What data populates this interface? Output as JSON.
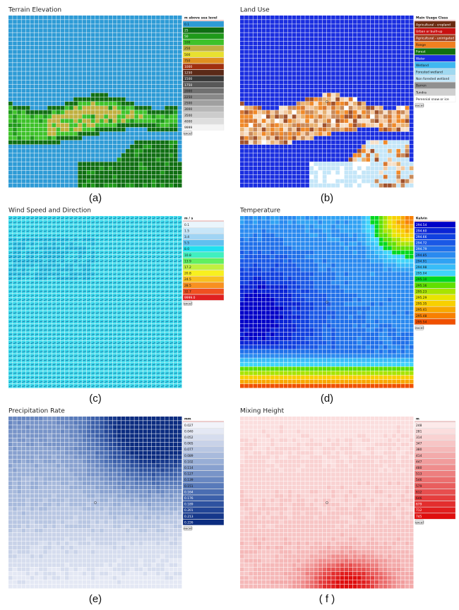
{
  "panels": [
    {
      "kind": "terrain",
      "title": "Terrain Elevation",
      "caption": "(a)",
      "button": "excel",
      "legend": {
        "title": "m above sea level",
        "items": [
          {
            "label": "0.1",
            "color": "#2e9bd6"
          },
          {
            "label": "25",
            "color": "#0f6e12"
          },
          {
            "label": "50",
            "color": "#1f9a1a"
          },
          {
            "label": "100",
            "color": "#3ec22a"
          },
          {
            "label": "250",
            "color": "#c0b040"
          },
          {
            "label": "500",
            "color": "#e8e030"
          },
          {
            "label": "750",
            "color": "#e09020"
          },
          {
            "label": "1000",
            "color": "#a03010"
          },
          {
            "label": "1250",
            "color": "#5a2a18"
          },
          {
            "label": "1500",
            "color": "#383838"
          },
          {
            "label": "1750",
            "color": "#585858"
          },
          {
            "label": "2000",
            "color": "#707070"
          },
          {
            "label": "2250",
            "color": "#888888"
          },
          {
            "label": "2500",
            "color": "#a0a0a0"
          },
          {
            "label": "3000",
            "color": "#b8b8b8"
          },
          {
            "label": "3500",
            "color": "#cccccc"
          },
          {
            "label": "4000",
            "color": "#dedede"
          },
          {
            "label": "9999",
            "color": "#f4f4f4"
          }
        ]
      }
    },
    {
      "kind": "landuse",
      "title": "Land Use",
      "caption": "(b)",
      "button": "excel",
      "legend": {
        "title": "Main Usage Class",
        "items": [
          {
            "label": "Agricultural - cropland",
            "color": "#6a2a10"
          },
          {
            "label": "Urban or built-up",
            "color": "#c81010"
          },
          {
            "label": "Agricultural - unirrigated",
            "color": "#a04020"
          },
          {
            "label": "Range",
            "color": "#f08020"
          },
          {
            "label": "Forest",
            "color": "#107010"
          },
          {
            "label": "Water",
            "color": "#1a2ee0"
          },
          {
            "label": "Wetland",
            "color": "#40b8f0"
          },
          {
            "label": "Forested wetland",
            "color": "#a0d8f0"
          },
          {
            "label": "Non forested wetland",
            "color": "#c4e6f8"
          },
          {
            "label": "Barren",
            "color": "#909090"
          },
          {
            "label": "Tundra",
            "color": "#d0d0d0"
          },
          {
            "label": "Perennial snow or ice",
            "color": "#ffffff"
          }
        ]
      }
    },
    {
      "kind": "wind",
      "title": "Wind Speed and Direction",
      "caption": "(c)",
      "button": "excel",
      "legend": {
        "title": "m / s",
        "items": [
          {
            "label": "0.1",
            "color": "#eaf5fc"
          },
          {
            "label": "1.5",
            "color": "#c8e6f8"
          },
          {
            "label": "3.4",
            "color": "#a0d4f4"
          },
          {
            "label": "5.5",
            "color": "#60c0f0"
          },
          {
            "label": "8.0",
            "color": "#20e0f0"
          },
          {
            "label": "10.8",
            "color": "#40f0c0"
          },
          {
            "label": "13.9",
            "color": "#60f060"
          },
          {
            "label": "17.2",
            "color": "#c0f040"
          },
          {
            "label": "20.8",
            "color": "#f8f020"
          },
          {
            "label": "24.5",
            "color": "#f8c020"
          },
          {
            "label": "28.5",
            "color": "#f89020"
          },
          {
            "label": "32.7",
            "color": "#f05020"
          },
          {
            "label": "9999.0",
            "color": "#e02020"
          }
        ]
      }
    },
    {
      "kind": "temperature",
      "title": "Temperature",
      "caption": "(d)",
      "button": "excel",
      "legend": {
        "title": "Kelvin",
        "items": [
          {
            "label": "294.54",
            "color": "#0000c8"
          },
          {
            "label": "294.60",
            "color": "#0a24d6"
          },
          {
            "label": "294.66",
            "color": "#1040e0"
          },
          {
            "label": "294.72",
            "color": "#1a58e6"
          },
          {
            "label": "294.79",
            "color": "#2070ea"
          },
          {
            "label": "294.85",
            "color": "#2a8af0"
          },
          {
            "label": "294.91",
            "color": "#30a2f4"
          },
          {
            "label": "294.98",
            "color": "#38bcf8"
          },
          {
            "label": "295.04",
            "color": "#40d4fa"
          },
          {
            "label": "295.10",
            "color": "#00d820"
          },
          {
            "label": "295.16",
            "color": "#60e000"
          },
          {
            "label": "295.23",
            "color": "#a8e400"
          },
          {
            "label": "295.29",
            "color": "#e8e400"
          },
          {
            "label": "295.35",
            "color": "#f8d000"
          },
          {
            "label": "295.41",
            "color": "#f8a800"
          },
          {
            "label": "295.48",
            "color": "#f88000"
          },
          {
            "label": "295.54",
            "color": "#f05000"
          }
        ]
      }
    },
    {
      "kind": "precip",
      "title": "Precipitation Rate",
      "caption": "(e)",
      "button": "excel",
      "legend": {
        "title": "mm",
        "items": [
          {
            "label": "0.027",
            "color": "#f2f3fa"
          },
          {
            "label": "0.040",
            "color": "#e4e8f4"
          },
          {
            "label": "0.052",
            "color": "#d6ddee"
          },
          {
            "label": "0.065",
            "color": "#c8d2e8"
          },
          {
            "label": "0.077",
            "color": "#b8c6e2"
          },
          {
            "label": "0.089",
            "color": "#a8badc"
          },
          {
            "label": "0.102",
            "color": "#98aed6"
          },
          {
            "label": "0.114",
            "color": "#88a1cf"
          },
          {
            "label": "0.127",
            "color": "#7894c8"
          },
          {
            "label": "0.139",
            "color": "#6887c1"
          },
          {
            "label": "0.151",
            "color": "#587aba"
          },
          {
            "label": "0.164",
            "color": "#4a6db2"
          },
          {
            "label": "0.176",
            "color": "#3c60aa"
          },
          {
            "label": "0.189",
            "color": "#2e52a0"
          },
          {
            "label": "0.201",
            "color": "#224596"
          },
          {
            "label": "0.213",
            "color": "#16388b"
          },
          {
            "label": "0.226",
            "color": "#0b2c80"
          }
        ]
      }
    },
    {
      "kind": "mixing",
      "title": "Mixing Height",
      "caption": "( f )",
      "button": "excel",
      "legend": {
        "title": "m",
        "items": [
          {
            "label": "248",
            "color": "#fdeaea"
          },
          {
            "label": "281",
            "color": "#fbdede"
          },
          {
            "label": "314",
            "color": "#f9d2d2"
          },
          {
            "label": "347",
            "color": "#f7c5c5"
          },
          {
            "label": "380",
            "color": "#f5b8b8"
          },
          {
            "label": "414",
            "color": "#f3aaaa"
          },
          {
            "label": "447",
            "color": "#f19c9c"
          },
          {
            "label": "480",
            "color": "#ef8d8d"
          },
          {
            "label": "513",
            "color": "#ed7e7e"
          },
          {
            "label": "546",
            "color": "#eb6e6e"
          },
          {
            "label": "579",
            "color": "#e95e5e"
          },
          {
            "label": "612",
            "color": "#e74e4e"
          },
          {
            "label": "646",
            "color": "#e53e3e"
          },
          {
            "label": "679",
            "color": "#e32e2e"
          },
          {
            "label": "712",
            "color": "#e11e1e"
          },
          {
            "label": "745",
            "color": "#df0e0e"
          }
        ]
      }
    }
  ]
}
